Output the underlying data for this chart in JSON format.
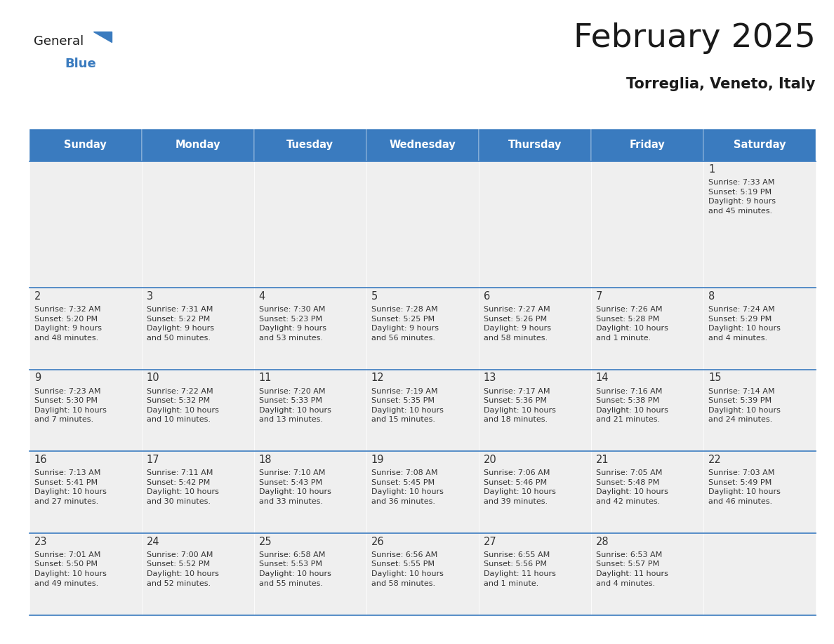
{
  "title": "February 2025",
  "subtitle": "Torreglia, Veneto, Italy",
  "header_color": "#3a7bbf",
  "header_text_color": "#ffffff",
  "cell_bg": "#efefef",
  "cell_bg_white": "#ffffff",
  "separator_color": "#3a7bbf",
  "day_number_color": "#333333",
  "text_color": "#333333",
  "days_of_week": [
    "Sunday",
    "Monday",
    "Tuesday",
    "Wednesday",
    "Thursday",
    "Friday",
    "Saturday"
  ],
  "calendar_data": [
    [
      null,
      null,
      null,
      null,
      null,
      null,
      {
        "day": 1,
        "sunrise": "7:33 AM",
        "sunset": "5:19 PM",
        "daylight": "9 hours\nand 45 minutes."
      }
    ],
    [
      {
        "day": 2,
        "sunrise": "7:32 AM",
        "sunset": "5:20 PM",
        "daylight": "9 hours\nand 48 minutes."
      },
      {
        "day": 3,
        "sunrise": "7:31 AM",
        "sunset": "5:22 PM",
        "daylight": "9 hours\nand 50 minutes."
      },
      {
        "day": 4,
        "sunrise": "7:30 AM",
        "sunset": "5:23 PM",
        "daylight": "9 hours\nand 53 minutes."
      },
      {
        "day": 5,
        "sunrise": "7:28 AM",
        "sunset": "5:25 PM",
        "daylight": "9 hours\nand 56 minutes."
      },
      {
        "day": 6,
        "sunrise": "7:27 AM",
        "sunset": "5:26 PM",
        "daylight": "9 hours\nand 58 minutes."
      },
      {
        "day": 7,
        "sunrise": "7:26 AM",
        "sunset": "5:28 PM",
        "daylight": "10 hours\nand 1 minute."
      },
      {
        "day": 8,
        "sunrise": "7:24 AM",
        "sunset": "5:29 PM",
        "daylight": "10 hours\nand 4 minutes."
      }
    ],
    [
      {
        "day": 9,
        "sunrise": "7:23 AM",
        "sunset": "5:30 PM",
        "daylight": "10 hours\nand 7 minutes."
      },
      {
        "day": 10,
        "sunrise": "7:22 AM",
        "sunset": "5:32 PM",
        "daylight": "10 hours\nand 10 minutes."
      },
      {
        "day": 11,
        "sunrise": "7:20 AM",
        "sunset": "5:33 PM",
        "daylight": "10 hours\nand 13 minutes."
      },
      {
        "day": 12,
        "sunrise": "7:19 AM",
        "sunset": "5:35 PM",
        "daylight": "10 hours\nand 15 minutes."
      },
      {
        "day": 13,
        "sunrise": "7:17 AM",
        "sunset": "5:36 PM",
        "daylight": "10 hours\nand 18 minutes."
      },
      {
        "day": 14,
        "sunrise": "7:16 AM",
        "sunset": "5:38 PM",
        "daylight": "10 hours\nand 21 minutes."
      },
      {
        "day": 15,
        "sunrise": "7:14 AM",
        "sunset": "5:39 PM",
        "daylight": "10 hours\nand 24 minutes."
      }
    ],
    [
      {
        "day": 16,
        "sunrise": "7:13 AM",
        "sunset": "5:41 PM",
        "daylight": "10 hours\nand 27 minutes."
      },
      {
        "day": 17,
        "sunrise": "7:11 AM",
        "sunset": "5:42 PM",
        "daylight": "10 hours\nand 30 minutes."
      },
      {
        "day": 18,
        "sunrise": "7:10 AM",
        "sunset": "5:43 PM",
        "daylight": "10 hours\nand 33 minutes."
      },
      {
        "day": 19,
        "sunrise": "7:08 AM",
        "sunset": "5:45 PM",
        "daylight": "10 hours\nand 36 minutes."
      },
      {
        "day": 20,
        "sunrise": "7:06 AM",
        "sunset": "5:46 PM",
        "daylight": "10 hours\nand 39 minutes."
      },
      {
        "day": 21,
        "sunrise": "7:05 AM",
        "sunset": "5:48 PM",
        "daylight": "10 hours\nand 42 minutes."
      },
      {
        "day": 22,
        "sunrise": "7:03 AM",
        "sunset": "5:49 PM",
        "daylight": "10 hours\nand 46 minutes."
      }
    ],
    [
      {
        "day": 23,
        "sunrise": "7:01 AM",
        "sunset": "5:50 PM",
        "daylight": "10 hours\nand 49 minutes."
      },
      {
        "day": 24,
        "sunrise": "7:00 AM",
        "sunset": "5:52 PM",
        "daylight": "10 hours\nand 52 minutes."
      },
      {
        "day": 25,
        "sunrise": "6:58 AM",
        "sunset": "5:53 PM",
        "daylight": "10 hours\nand 55 minutes."
      },
      {
        "day": 26,
        "sunrise": "6:56 AM",
        "sunset": "5:55 PM",
        "daylight": "10 hours\nand 58 minutes."
      },
      {
        "day": 27,
        "sunrise": "6:55 AM",
        "sunset": "5:56 PM",
        "daylight": "11 hours\nand 1 minute."
      },
      {
        "day": 28,
        "sunrise": "6:53 AM",
        "sunset": "5:57 PM",
        "daylight": "11 hours\nand 4 minutes."
      },
      null
    ]
  ],
  "fig_width": 11.88,
  "fig_height": 9.18,
  "dpi": 100
}
